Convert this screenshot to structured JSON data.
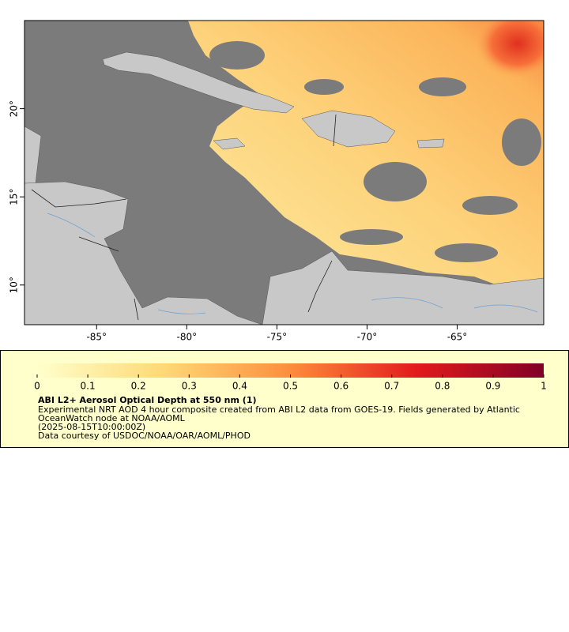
{
  "chart_data": {
    "type": "map",
    "xlim": [
      -89,
      -60.2
    ],
    "ylim": [
      7.75,
      25
    ],
    "xticks": [
      {
        "value": -85,
        "label": "-85°"
      },
      {
        "value": -80,
        "label": "-80°"
      },
      {
        "value": -75,
        "label": "-75°"
      },
      {
        "value": -70,
        "label": "-70°"
      },
      {
        "value": -65,
        "label": "-65°"
      }
    ],
    "yticks": [
      {
        "value": 10,
        "label": "10°"
      },
      {
        "value": 15,
        "label": "15°"
      },
      {
        "value": 20,
        "label": "20°"
      }
    ],
    "colorbar": {
      "clim": [
        0,
        1
      ],
      "colors": [
        "#ffffcc",
        "#fed976",
        "#fd8d3c",
        "#e31a1c",
        "#800026"
      ],
      "ticks": [
        0,
        0.1,
        0.2,
        0.3,
        0.4,
        0.5,
        0.6,
        0.7,
        0.8,
        0.9,
        1
      ]
    },
    "title": "ABI L2+ Aerosol Optical Depth at 550 nm (1)",
    "description": [
      "Experimental NRT AOD 4 hour composite created from ABI L2 data from GOES-19. Fields generated by Atlantic",
      "OceanWatch node at NOAA/AOML"
    ],
    "time": "(2025-08-15T10:00:00Z)",
    "credit": "Data courtesy of USDOC/NOAA/OAR/AOML/PHOD"
  }
}
